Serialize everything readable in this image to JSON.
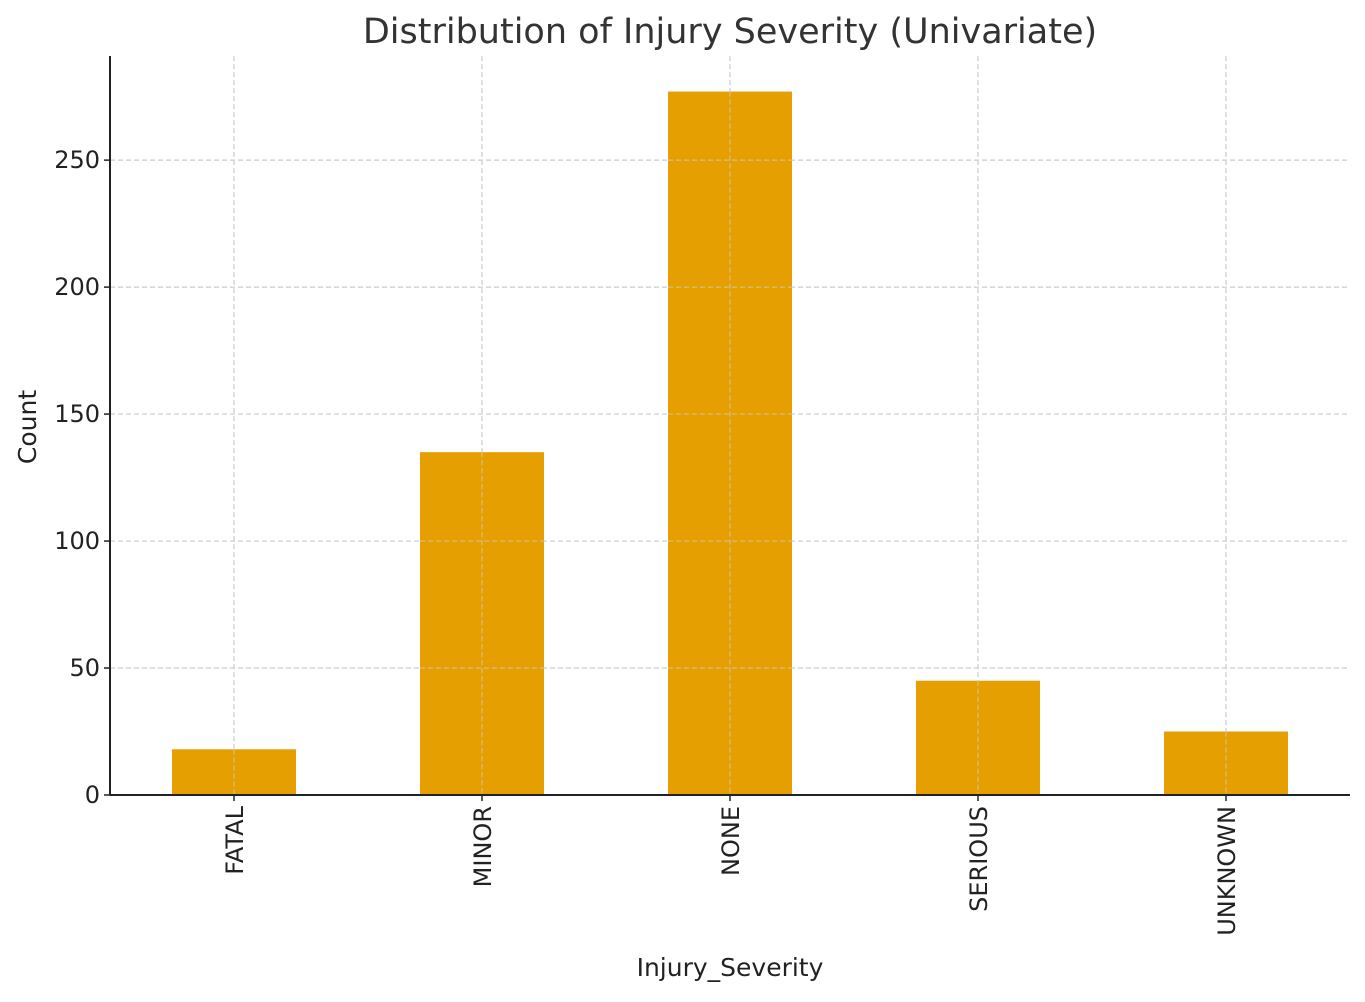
{
  "chart_data": {
    "type": "bar",
    "title": "Distribution of Injury Severity (Univariate)",
    "xlabel": "Injury_Severity",
    "ylabel": "Count",
    "categories": [
      "FATAL",
      "MINOR",
      "NONE",
      "SERIOUS",
      "UNKNOWN"
    ],
    "values": [
      18,
      135,
      277,
      45,
      25
    ],
    "ylim": [
      0,
      291
    ],
    "yticks": [
      0,
      50,
      100,
      150,
      200,
      250
    ],
    "grid": true,
    "legend": "none",
    "bar_color": "#E69F00",
    "grid_color": "#cccccc",
    "axis_color": "#222222",
    "text_color": "#333333"
  }
}
